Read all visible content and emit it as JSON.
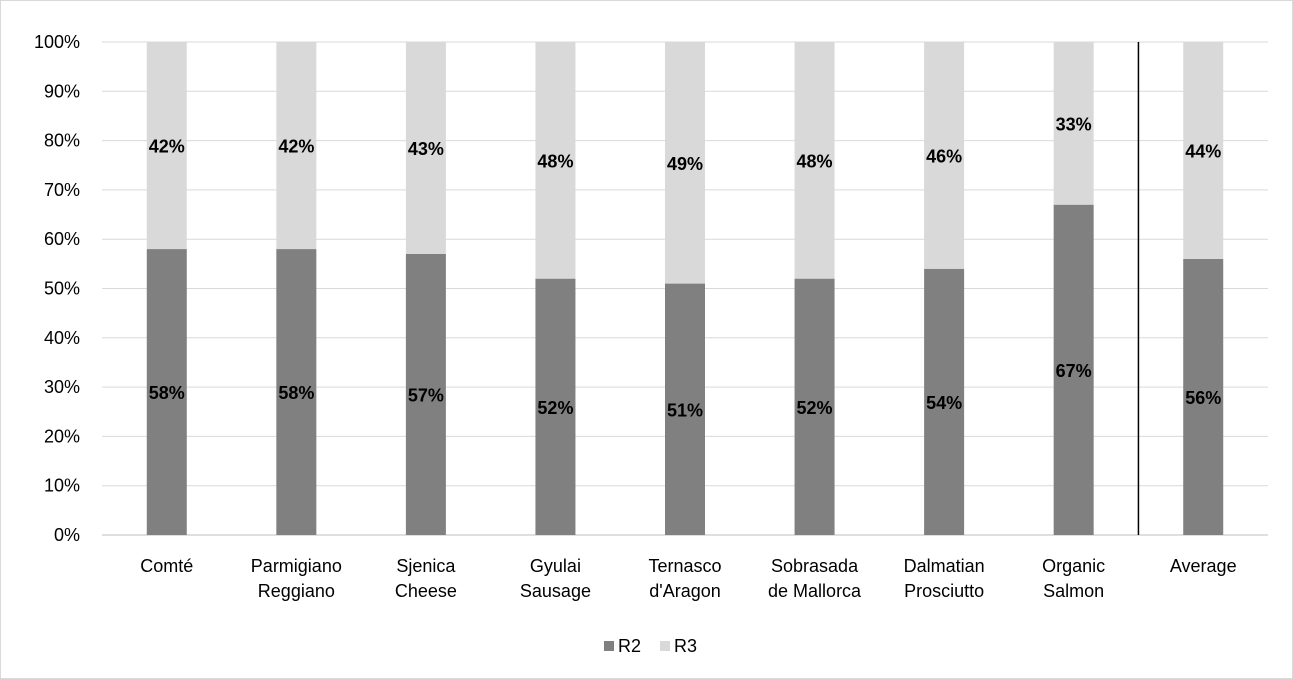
{
  "chart_data": {
    "type": "bar",
    "stacked": true,
    "percent_stacked": true,
    "categories": [
      [
        "Comté"
      ],
      [
        "Parmigiano",
        "Reggiano"
      ],
      [
        "Sjenica",
        "Cheese"
      ],
      [
        "Gyulai",
        "Sausage"
      ],
      [
        "Ternasco",
        "d'Aragon"
      ],
      [
        "Sobrasada",
        "de Mallorca"
      ],
      [
        "Dalmatian",
        "Prosciutto"
      ],
      [
        "Organic",
        "Salmon"
      ],
      [
        "Average"
      ]
    ],
    "series": [
      {
        "name": "R2",
        "color": "#808080",
        "values": [
          58,
          58,
          57,
          52,
          51,
          52,
          54,
          67,
          56
        ],
        "labels": [
          "58%",
          "58%",
          "57%",
          "52%",
          "51%",
          "52%",
          "54%",
          "67%",
          "56%"
        ]
      },
      {
        "name": "R3",
        "color": "#d9d9d9",
        "values": [
          42,
          42,
          43,
          48,
          49,
          48,
          46,
          33,
          44
        ],
        "labels": [
          "42%",
          "42%",
          "43%",
          "48%",
          "49%",
          "48%",
          "46%",
          "33%",
          "44%"
        ]
      }
    ],
    "ylim": [
      0,
      100
    ],
    "yticks": [
      "0%",
      "10%",
      "20%",
      "30%",
      "40%",
      "50%",
      "60%",
      "70%",
      "80%",
      "90%",
      "100%"
    ],
    "grid": true,
    "legend_position": "bottom",
    "separator_before_category_index": 8,
    "title": "",
    "xlabel": "",
    "ylabel": ""
  }
}
